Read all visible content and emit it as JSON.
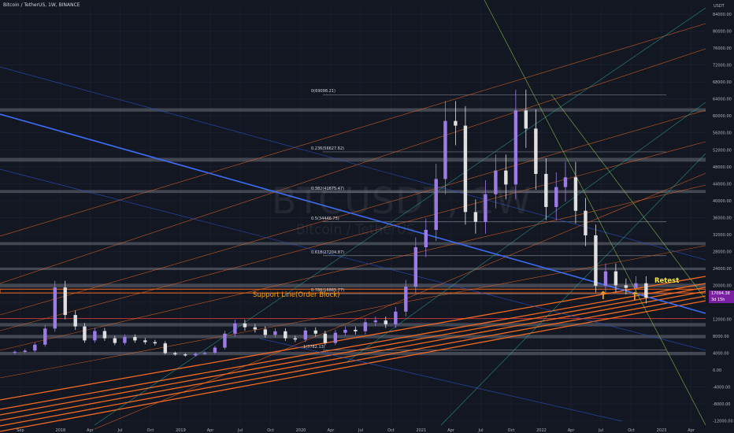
{
  "title": "Bitcoin / TetherUS, 1W, BINANCE",
  "watermark": {
    "symbol": "BTCUSDT, 1W",
    "name": "Bitcoin / TetherUS"
  },
  "annotations": {
    "support": "Support Line(Order Block)",
    "retest": "Retest"
  },
  "current_price": {
    "value": "17094.38",
    "countdown": "3d 15h"
  },
  "fib_levels": [
    {
      "label": "0(69098.21)",
      "price": 65000
    },
    {
      "label": "0.236(56627.62)",
      "price": 51500
    },
    {
      "label": "0.382(41675.47)",
      "price": 42000
    },
    {
      "label": "0.5(34446.75)",
      "price": 35000
    },
    {
      "label": "0.618(27204.87)",
      "price": 27000
    },
    {
      "label": "0.786(16865.77)",
      "price": 18000
    },
    {
      "label": "1(3782.13)",
      "price": 4700
    }
  ],
  "colors": {
    "background": "#131722",
    "up": "#9c7be8",
    "down": "#e0e0e0",
    "orange": "#f26a21",
    "blue": "#2962ff",
    "teal": "#26a69a",
    "green": "#8bc34a"
  },
  "chart_data": {
    "type": "candlestick",
    "title": "Bitcoin / TetherUS, 1W, BINANCE",
    "yunit": "USDT",
    "y_ticks": [
      84000,
      80000,
      76000,
      72000,
      68000,
      64000,
      60000,
      56000,
      52000,
      48000,
      44000,
      40000,
      36000,
      32000,
      28000,
      24000,
      20000,
      16000,
      12000,
      8000,
      4000,
      0,
      -4000,
      -8000,
      -12000
    ],
    "y_tick_labels": [
      "84000.00",
      "80000.00",
      "76000.00",
      "72000.00",
      "68000.00",
      "64000.00",
      "60000.00",
      "56000.00",
      "52000.00",
      "48000.00",
      "44000.00",
      "40000.00",
      "36000.00",
      "32000.00",
      "28000.00",
      "24000.00",
      "20000.00",
      "",
      "12000.00",
      "8000.00",
      "4000.00",
      "0.00",
      "-4000.00",
      "-8000.00",
      "-12000.00"
    ],
    "ylim": [
      -13000,
      85500
    ],
    "x_ticks": [
      "Sep",
      "2018",
      "Apr",
      "Jul",
      "Oct",
      "2019",
      "Apr",
      "Jul",
      "Oct",
      "2020",
      "Apr",
      "Jul",
      "Oct",
      "2021",
      "Apr",
      "Jul",
      "Oct",
      "2022",
      "Apr",
      "Jul",
      "Oct",
      "2023",
      "Apr"
    ],
    "xlim": [
      "2017-07-01",
      "2023-05-15"
    ],
    "series": [
      {
        "points": [
          [
            "2017-08",
            4300
          ],
          [
            "2017-09",
            4600
          ],
          [
            "2017-10",
            6000
          ],
          [
            "2017-11",
            9800
          ],
          [
            "2017-12",
            19500
          ],
          [
            "2018-01",
            13000
          ],
          [
            "2018-02",
            10300
          ],
          [
            "2018-03",
            7000
          ],
          [
            "2018-04",
            9200
          ],
          [
            "2018-05",
            7500
          ],
          [
            "2018-06",
            6400
          ],
          [
            "2018-07",
            7800
          ],
          [
            "2018-08",
            7000
          ],
          [
            "2018-09",
            6600
          ],
          [
            "2018-10",
            6300
          ],
          [
            "2018-11",
            4000
          ],
          [
            "2018-12",
            3700
          ],
          [
            "2019-01",
            3450
          ],
          [
            "2019-02",
            3850
          ],
          [
            "2019-03",
            4100
          ],
          [
            "2019-04",
            5300
          ],
          [
            "2019-05",
            8600
          ],
          [
            "2019-06",
            11000
          ],
          [
            "2019-07",
            10100
          ],
          [
            "2019-08",
            9600
          ],
          [
            "2019-09",
            8300
          ],
          [
            "2019-10",
            9150
          ],
          [
            "2019-11",
            7500
          ],
          [
            "2019-12",
            7200
          ],
          [
            "2020-01",
            9350
          ],
          [
            "2020-02",
            8600
          ],
          [
            "2020-03",
            6400
          ],
          [
            "2020-04",
            8800
          ],
          [
            "2020-05",
            9500
          ],
          [
            "2020-06",
            9150
          ],
          [
            "2020-07",
            11300
          ],
          [
            "2020-08",
            11700
          ],
          [
            "2020-09",
            10800
          ],
          [
            "2020-10",
            13800
          ],
          [
            "2020-11",
            19700
          ],
          [
            "2020-12",
            29000
          ],
          [
            "2021-01",
            33100
          ],
          [
            "2021-02",
            45100
          ],
          [
            "2021-03",
            58800
          ],
          [
            "2021-04",
            57700
          ],
          [
            "2021-05",
            37300
          ],
          [
            "2021-06",
            35000
          ],
          [
            "2021-07",
            41500
          ],
          [
            "2021-08",
            47100
          ],
          [
            "2021-09",
            43800
          ],
          [
            "2021-10",
            61300
          ],
          [
            "2021-11",
            57000
          ],
          [
            "2021-12",
            46300
          ],
          [
            "2022-01",
            38500
          ],
          [
            "2022-02",
            43200
          ],
          [
            "2022-03",
            45500
          ],
          [
            "2022-04",
            37600
          ],
          [
            "2022-05",
            31800
          ],
          [
            "2022-06",
            19900
          ],
          [
            "2022-07",
            23300
          ],
          [
            "2022-08",
            20000
          ],
          [
            "2022-09",
            19400
          ],
          [
            "2022-10",
            20500
          ],
          [
            "2022-11",
            17100
          ]
        ]
      }
    ]
  }
}
